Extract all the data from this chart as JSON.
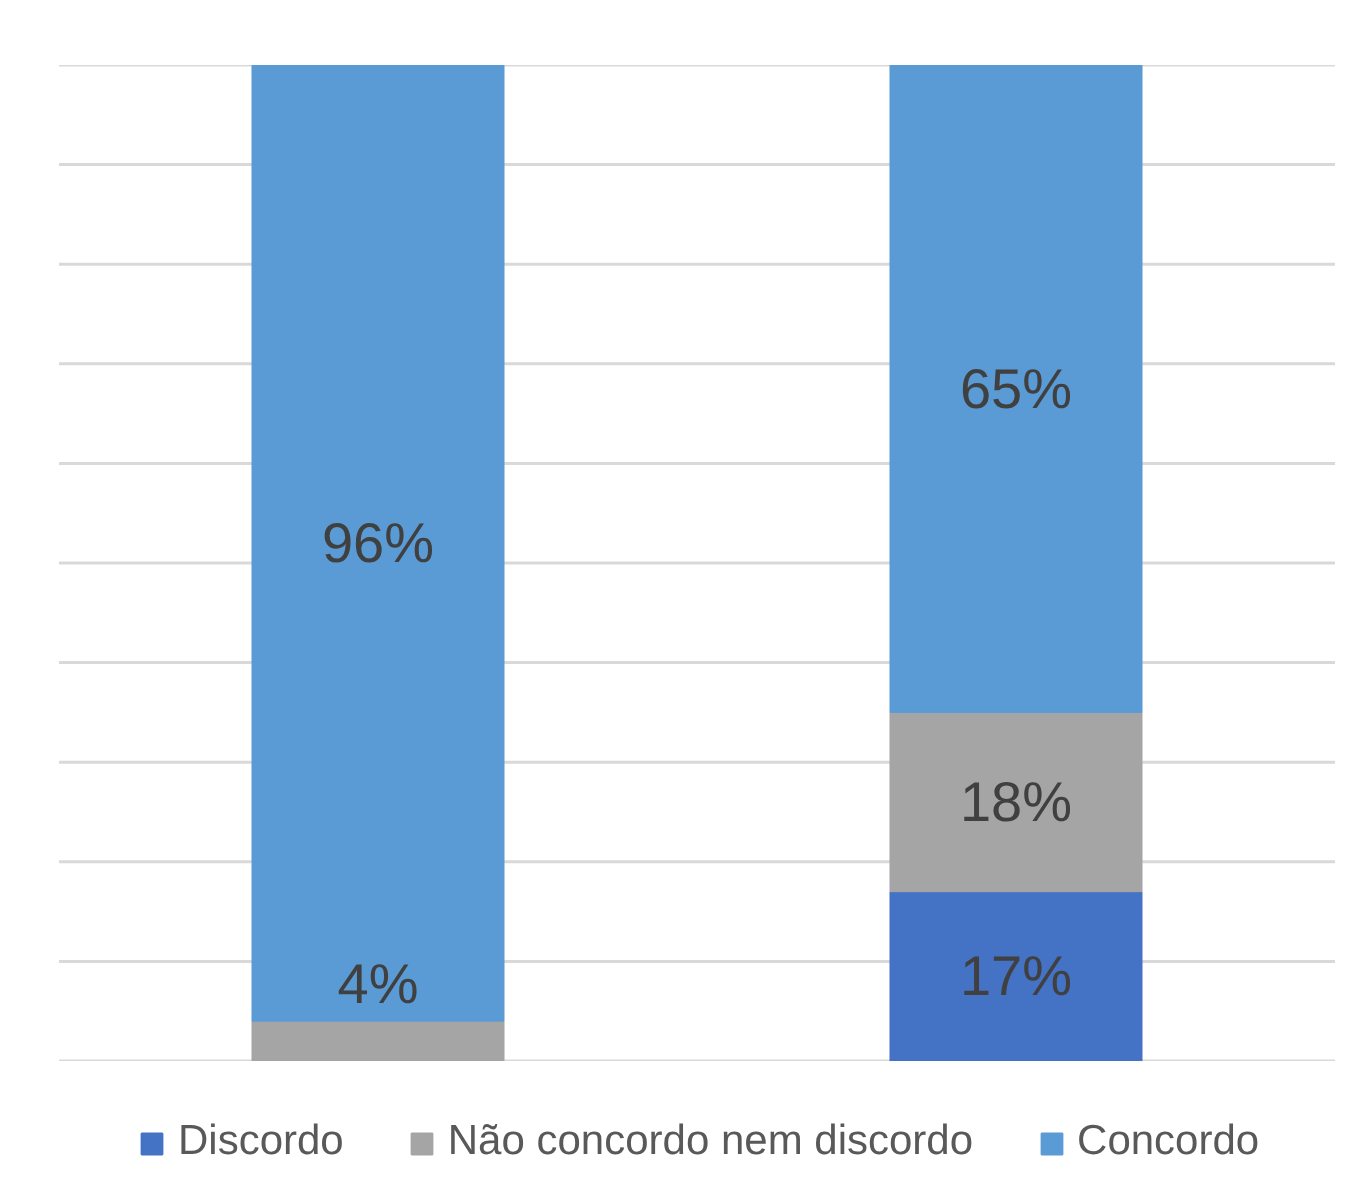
{
  "chart_data": {
    "type": "bar",
    "stacked": true,
    "categories": [
      null,
      null
    ],
    "series": [
      {
        "name": "Discordo",
        "color": "#4472c4",
        "values": [
          null,
          17
        ],
        "value_labels": [
          null,
          "17%"
        ]
      },
      {
        "name": "Não concordo nem discordo",
        "color": "#a5a5a5",
        "values": [
          4,
          18
        ],
        "value_labels": [
          "4%",
          "18%"
        ]
      },
      {
        "name": "Concordo",
        "color": "#5b9bd5",
        "values": [
          96,
          65
        ],
        "value_labels": [
          "96%",
          "65%"
        ]
      }
    ],
    "ylim": [
      0,
      100
    ],
    "yticks": [
      {
        "value": 0,
        "label": null
      },
      {
        "value": 10,
        "label": null
      },
      {
        "value": 20,
        "label": null
      },
      {
        "value": 30,
        "label": null
      },
      {
        "value": 40,
        "label": null
      },
      {
        "value": 50,
        "label": null
      },
      {
        "value": 60,
        "label": null
      },
      {
        "value": 70,
        "label": null
      },
      {
        "value": 80,
        "label": null
      },
      {
        "value": 90,
        "label": null
      },
      {
        "value": 100,
        "label": null
      }
    ],
    "grid": "y",
    "legend": "bottom",
    "tick_labels": false
  }
}
